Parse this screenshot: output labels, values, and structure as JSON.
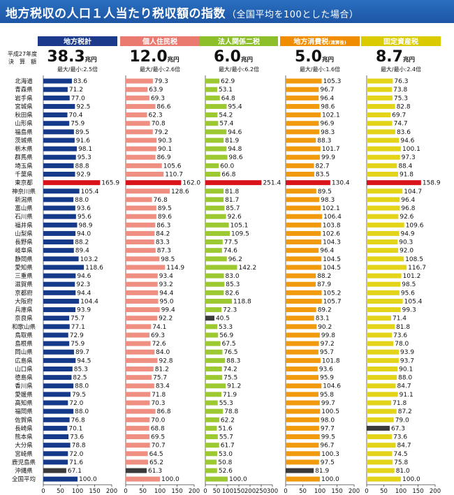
{
  "title": "地方税収の人口１人当たり税収額の指数",
  "subtitle": "（全国平均を100とした場合）",
  "fiscal_year_label": "平成27年度",
  "settlement_label": "決　算　額",
  "colors": {
    "title_bar": "#1d55a4",
    "highlight_max": "#d8141a",
    "highlight_min": "#3a3a3a"
  },
  "chart_data": [
    {
      "type": "bar",
      "header": "地方税計",
      "total": "38.3",
      "unit": "兆円",
      "ratio": "最大/最小:2.5倍",
      "header_color": "#1b3a8c",
      "bar_color": "#163a8a",
      "xlim": [
        0,
        200
      ],
      "xticks": [
        "0",
        "50",
        "100",
        "150",
        "200"
      ],
      "values": [
        83.6,
        71.2,
        77.0,
        92.5,
        70.4,
        75.9,
        89.5,
        91.6,
        98.1,
        95.3,
        88.8,
        92.9,
        165.9,
        105.4,
        88.0,
        93.6,
        95.6,
        98.9,
        94.0,
        88.2,
        89.4,
        103.2,
        118.6,
        94.6,
        92.3,
        94.4,
        104.4,
        93.9,
        75.7,
        77.1,
        72.9,
        75.9,
        89.7,
        94.5,
        85.3,
        82.5,
        88.0,
        79.5,
        72.0,
        88.0,
        76.8,
        70.1,
        73.6,
        78.8,
        72.0,
        71.6,
        67.1,
        100.0
      ]
    },
    {
      "type": "bar",
      "header": "個人住民税",
      "total": "12.0",
      "unit": "兆円",
      "ratio": "最大/最小:2.6倍",
      "header_color": "#ea7a70",
      "bar_color": "#ef8f82",
      "xlim": [
        0,
        200
      ],
      "xticks": [
        "0",
        "50",
        "100",
        "150",
        "200"
      ],
      "values": [
        79.3,
        63.9,
        69.3,
        86.6,
        62.3,
        70.8,
        79.2,
        90.3,
        90.1,
        86.9,
        105.6,
        110.7,
        162.0,
        128.6,
        76.8,
        89.5,
        89.6,
        86.3,
        84.2,
        83.3,
        87.3,
        98.5,
        114.9,
        93.4,
        93.2,
        94.4,
        95.0,
        99.4,
        92.2,
        74.1,
        69.3,
        72.6,
        84.0,
        92.8,
        81.2,
        75.7,
        83.4,
        71.8,
        70.3,
        86.8,
        70.0,
        68.8,
        69.5,
        70.7,
        64.5,
        65.2,
        61.3,
        100.0
      ]
    },
    {
      "type": "bar",
      "header": "法人関係二税",
      "total": "6.0",
      "unit": "兆円",
      "ratio": "最大/最小:6.2倍",
      "header_color": "#8cbf2a",
      "bar_color": "#9cc832",
      "xlim": [
        0,
        300
      ],
      "xticks": [
        "0",
        "50",
        "100",
        "150",
        "200",
        "250",
        "300"
      ],
      "values": [
        62.9,
        53.1,
        64.8,
        95.4,
        54.2,
        57.4,
        94.6,
        81.9,
        94.8,
        98.6,
        60.0,
        66.8,
        251.4,
        81.8,
        81.7,
        85.7,
        92.6,
        105.1,
        109.5,
        77.5,
        74.6,
        96.2,
        142.2,
        83.0,
        85.3,
        82.6,
        118.8,
        72.3,
        40.5,
        53.3,
        56.9,
        67.5,
        76.5,
        88.3,
        74.2,
        75.5,
        91.2,
        71.9,
        55.3,
        78.8,
        62.2,
        51.6,
        55.7,
        61.7,
        53.0,
        50.8,
        52.6,
        100.0
      ]
    },
    {
      "type": "bar",
      "header": "地方消費税",
      "header_note": "(清算後)",
      "total": "5.0",
      "unit": "兆円",
      "ratio": "最大/最小:1.6倍",
      "header_color": "#f08c00",
      "bar_color": "#f29a0e",
      "xlim": [
        0,
        200
      ],
      "xticks": [
        "0",
        "50",
        "100",
        "150",
        "200"
      ],
      "values": [
        105.3,
        96.7,
        96.4,
        98.6,
        102.1,
        96.9,
        98.3,
        88.3,
        101.7,
        99.9,
        82.7,
        83.5,
        130.4,
        89.5,
        98.3,
        102.1,
        106.4,
        103.8,
        102.6,
        104.3,
        96.4,
        104.5,
        104.5,
        88.2,
        87.9,
        105.2,
        105.7,
        89.2,
        83.1,
        90.2,
        99.8,
        97.2,
        95.7,
        101.8,
        93.6,
        95.9,
        104.6,
        95.8,
        99.7,
        100.5,
        98.0,
        97.7,
        99.5,
        96.7,
        100.3,
        97.5,
        81.9,
        100.0
      ]
    },
    {
      "type": "bar",
      "header": "固定資産税",
      "total": "8.7",
      "unit": "兆円",
      "ratio": "最大/最小:2.4倍",
      "header_color": "#d9cb00",
      "bar_color": "#e3d41a",
      "xlim": [
        0,
        200
      ],
      "xticks": [
        "0",
        "50",
        "100",
        "150",
        "200"
      ],
      "values": [
        76.3,
        73.8,
        75.3,
        82.8,
        69.7,
        74.7,
        83.6,
        94.6,
        100.1,
        97.3,
        88.4,
        91.8,
        158.9,
        104.7,
        96.4,
        96.8,
        92.6,
        109.6,
        94.9,
        90.3,
        92.0,
        108.5,
        116.7,
        101.2,
        98.5,
        95.6,
        105.4,
        99.3,
        71.4,
        81.8,
        73.6,
        78.0,
        93.9,
        93.7,
        90.1,
        88.0,
        84.7,
        91.1,
        71.8,
        87.2,
        79.0,
        67.3,
        73.6,
        84.7,
        74.5,
        75.8,
        81.0,
        100.0
      ]
    }
  ],
  "categories": [
    "北海道",
    "青森県",
    "岩手県",
    "宮城県",
    "秋田県",
    "山形県",
    "福島県",
    "茨城県",
    "栃木県",
    "群馬県",
    "埼玉県",
    "千葉県",
    "東京都",
    "神奈川県",
    "新潟県",
    "富山県",
    "石川県",
    "福井県",
    "山梨県",
    "長野県",
    "岐阜県",
    "静岡県",
    "愛知県",
    "三重県",
    "滋賀県",
    "京都府",
    "大阪府",
    "兵庫県",
    "奈良県",
    "和歌山県",
    "鳥取県",
    "島根県",
    "岡山県",
    "広島県",
    "山口県",
    "徳島県",
    "香川県",
    "愛媛県",
    "高知県",
    "福岡県",
    "佐賀県",
    "長崎県",
    "熊本県",
    "大分県",
    "宮崎県",
    "鹿児島県",
    "沖縄県",
    "全国平均"
  ]
}
